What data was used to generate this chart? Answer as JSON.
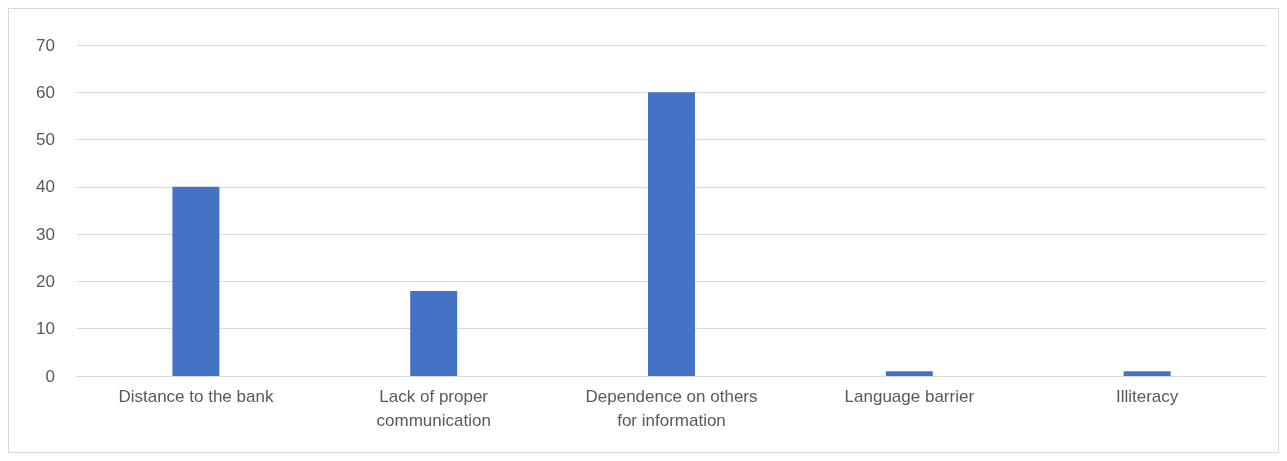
{
  "chart_data": {
    "type": "bar",
    "categories": [
      "Distance to the bank",
      "Lack of proper\ncommunication",
      "Dependence on others\nfor information",
      "Language barrier",
      "Illiteracy"
    ],
    "values": [
      40,
      18,
      60,
      1,
      1
    ],
    "color": "#4472c4",
    "ylim": [
      0,
      70
    ],
    "yticks": [
      0,
      10,
      20,
      30,
      40,
      50,
      60,
      70
    ],
    "grid": "y"
  }
}
